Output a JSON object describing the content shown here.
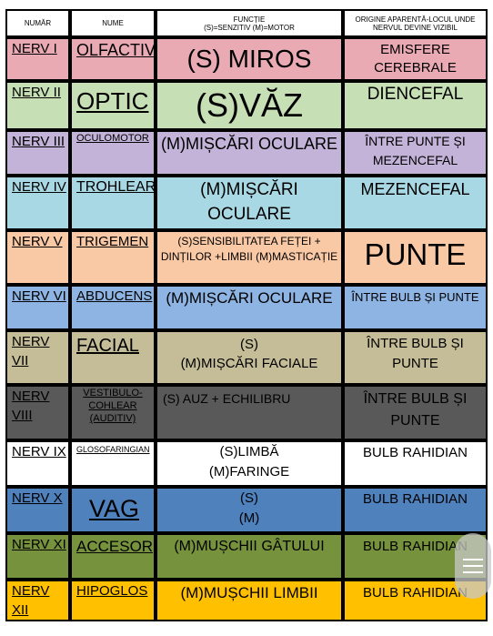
{
  "headers": {
    "col1": "NUMĂR",
    "col2": "NUME",
    "col3_line1": "FUNCȚIE",
    "col3_line2": "(S)=SENZITIV   (M)=MOTOR",
    "col4_line1": "ORIGINE APARENTĂ-LOCUL UNDE",
    "col4_line2": "NERVUL DEVINE VIZIBIL"
  },
  "rows": [
    {
      "nr": "NERV I",
      "name": "OLFACTIV",
      "func": "(S) MIROS",
      "origin": "EMISFERE CEREBRALE",
      "color": "#e9aab4"
    },
    {
      "nr": "NERV II",
      "name": "OPTIC",
      "func": "(S)VĂZ",
      "origin": "DIENCEFAL",
      "color": "#c6dfb4"
    },
    {
      "nr": "NERV III",
      "name": "OCULOMOTOR",
      "func": "(M)MIȘCĂRI OCULARE",
      "origin": "ÎNTRE PUNTE ȘI MEZENCEFAL",
      "color": "#c3b3d8"
    },
    {
      "nr": "NERV IV",
      "name": "TROHLEAR",
      "func": "(M)MIȘCĂRI OCULARE",
      "origin": "MEZENCEFAL",
      "color": "#a8d8e3"
    },
    {
      "nr": "NERV V",
      "name": "TRIGEMEN",
      "func": "(S)SENSIBILITATEA FEȚEI + DINȚILOR +LIMBII (M)MASTICAȚIE",
      "origin": "PUNTE",
      "color": "#f9c9a5"
    },
    {
      "nr": "NERV VI",
      "name": "ABDUCENS",
      "func": "(M)MIȘCĂRI OCULARE",
      "origin": "ÎNTRE BULB ȘI PUNTE",
      "color": "#8db4e2"
    },
    {
      "nr": "NERV VII",
      "name": "FACIAL",
      "func_line1": "(S)",
      "func_line2": "(M)MIȘCĂRI FACIALE",
      "origin": "ÎNTRE BULB ȘI PUNTE",
      "color": "#c4bd97"
    },
    {
      "nr": "NERV VIII",
      "name": "VESTIBULO-COHLEAR (AUDITIV)",
      "func": "(S) AUZ    +    ECHILIBRU",
      "origin": "ÎNTRE BULB ȘI PUNTE",
      "color": "#595959"
    },
    {
      "nr": "NERV IX",
      "name": "GLOSOFARINGIAN",
      "func_line1": "(S)LIMBĂ",
      "func_line2": "(M)FARINGE",
      "origin": "BULB RAHIDIAN",
      "color": "#ffffff"
    },
    {
      "nr": "NERV X",
      "name": "VAG",
      "func_line1": "(S)",
      "func_line2": "(M)",
      "origin": "BULB RAHIDIAN",
      "color": "#4f81bd"
    },
    {
      "nr": "NERV XI",
      "name": "ACCESOR",
      "func": "(M)MUȘCHII GÂTULUI",
      "origin": "BULB RAHIDIAN",
      "color": "#76923c"
    },
    {
      "nr": "NERV XII",
      "name": "HIPOGLOS",
      "func": "(M)MUȘCHII LIMBII",
      "origin": "BULB RAHIDIAN",
      "color": "#ffc000"
    }
  ]
}
